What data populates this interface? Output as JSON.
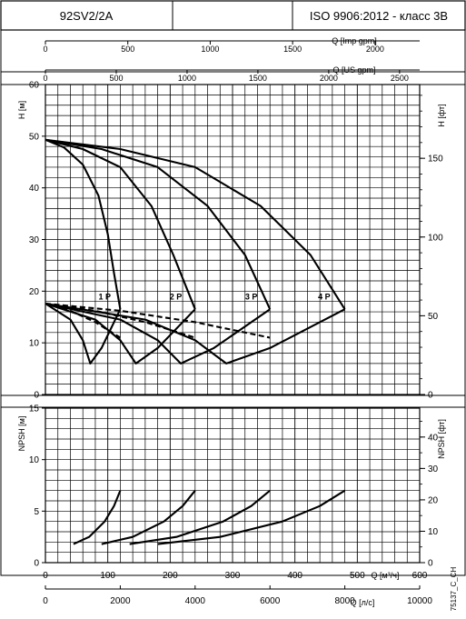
{
  "header": {
    "model": "92SV2/2A",
    "middle": "",
    "standard": "ISO 9906:2012 - класс 3B"
  },
  "code": "75137_C_CH",
  "chart_data": [
    {
      "type": "line",
      "panel": "head",
      "ylabel_left": "H [м]",
      "ylabel_right": "H [фт]",
      "ylim": [
        0,
        60
      ],
      "yticks": [
        0,
        10,
        20,
        30,
        40,
        50,
        60
      ],
      "ylim_ft": [
        0,
        196.85
      ],
      "yticks_ft": [
        0,
        50,
        100,
        150
      ],
      "xlim": [
        0,
        600
      ],
      "xticks": [
        0,
        100,
        200,
        300,
        400,
        500,
        600
      ],
      "top_axis_imp": {
        "label": "Q [Imp gpm]",
        "ticks": [
          0,
          500,
          1000,
          1500,
          2000
        ]
      },
      "top_axis_us": {
        "label": "Q [US gpm]",
        "ticks": [
          0,
          500,
          1000,
          1500,
          2000,
          2500
        ]
      },
      "grid": true,
      "series": [
        {
          "name": "1 P",
          "label_at": [
            95,
            19
          ],
          "style": "solid",
          "points": [
            [
              0,
              49.3
            ],
            [
              30,
              47.8
            ],
            [
              60,
              44.5
            ],
            [
              85,
              38.5
            ],
            [
              100,
              31
            ],
            [
              110,
              23.5
            ],
            [
              120,
              16.5
            ]
          ]
        },
        {
          "name": "2 P",
          "label_at": [
            209,
            19
          ],
          "style": "solid",
          "points": [
            [
              0,
              49.3
            ],
            [
              60,
              47.5
            ],
            [
              120,
              44
            ],
            [
              170,
              36.5
            ],
            [
              205,
              27
            ],
            [
              240,
              16.5
            ]
          ]
        },
        {
          "name": "3 P",
          "label_at": [
            330,
            19
          ],
          "style": "solid",
          "points": [
            [
              0,
              49.3
            ],
            [
              90,
              47.5
            ],
            [
              180,
              44
            ],
            [
              260,
              36.5
            ],
            [
              320,
              27
            ],
            [
              360,
              16.5
            ]
          ]
        },
        {
          "name": "4 P",
          "label_at": [
            447,
            19
          ],
          "style": "solid",
          "points": [
            [
              0,
              49.3
            ],
            [
              120,
              47.5
            ],
            [
              240,
              44
            ],
            [
              345,
              36.5
            ],
            [
              425,
              27
            ],
            [
              480,
              16.5
            ]
          ]
        },
        {
          "name": "",
          "style": "solid",
          "points": [
            [
              0,
              17.6
            ],
            [
              40,
              14.5
            ],
            [
              60,
              10.5
            ],
            [
              72,
              6
            ],
            [
              90,
              9
            ],
            [
              120,
              16.5
            ]
          ]
        },
        {
          "name": "",
          "style": "solid",
          "points": [
            [
              0,
              17.6
            ],
            [
              80,
              14.5
            ],
            [
              120,
              10.5
            ],
            [
              145,
              6
            ],
            [
              180,
              9
            ],
            [
              240,
              16.5
            ]
          ]
        },
        {
          "name": "",
          "style": "solid",
          "points": [
            [
              0,
              17.6
            ],
            [
              120,
              14.5
            ],
            [
              180,
              10.5
            ],
            [
              217,
              6
            ],
            [
              270,
              9
            ],
            [
              360,
              16.5
            ]
          ]
        },
        {
          "name": "",
          "style": "solid",
          "points": [
            [
              0,
              17.6
            ],
            [
              160,
              14.5
            ],
            [
              240,
              10.5
            ],
            [
              290,
              6
            ],
            [
              360,
              9
            ],
            [
              480,
              16.5
            ]
          ]
        },
        {
          "name": "",
          "style": "dashed",
          "points": [
            [
              0,
              17.6
            ],
            [
              40,
              16.2
            ],
            [
              80,
              14
            ],
            [
              120,
              11
            ]
          ]
        },
        {
          "name": "",
          "style": "dashed",
          "points": [
            [
              0,
              17.6
            ],
            [
              80,
              16.2
            ],
            [
              160,
              14
            ],
            [
              240,
              11
            ]
          ]
        },
        {
          "name": "",
          "style": "dashed",
          "points": [
            [
              0,
              17.6
            ],
            [
              120,
              16.2
            ],
            [
              240,
              14
            ],
            [
              360,
              11
            ]
          ]
        }
      ]
    },
    {
      "type": "line",
      "panel": "npsh",
      "ylabel_left": "NPSH [м]",
      "ylabel_right": "NPSH [фт]",
      "ylim": [
        0,
        15
      ],
      "yticks": [
        0,
        5,
        10,
        15
      ],
      "ylim_ft": [
        0,
        49.21
      ],
      "yticks_ft": [
        0,
        10,
        20,
        30,
        40
      ],
      "xlim": [
        0,
        600
      ],
      "xticks": [
        0,
        100,
        200,
        300,
        400,
        500,
        600
      ],
      "xlabel": "Q [м³/ч]",
      "bottom_axis_ls": {
        "label": "Q [л/с]",
        "ticks": [
          0,
          2000,
          4000,
          6000,
          8000,
          10000
        ]
      },
      "grid": true,
      "series": [
        {
          "name": "",
          "style": "solid",
          "points": [
            [
              45,
              1.8
            ],
            [
              70,
              2.5
            ],
            [
              95,
              4
            ],
            [
              110,
              5.5
            ],
            [
              120,
              7
            ]
          ]
        },
        {
          "name": "",
          "style": "solid",
          "points": [
            [
              90,
              1.8
            ],
            [
              140,
              2.5
            ],
            [
              190,
              4
            ],
            [
              220,
              5.5
            ],
            [
              240,
              7
            ]
          ]
        },
        {
          "name": "",
          "style": "solid",
          "points": [
            [
              135,
              1.8
            ],
            [
              210,
              2.5
            ],
            [
              285,
              4
            ],
            [
              330,
              5.5
            ],
            [
              360,
              7
            ]
          ]
        },
        {
          "name": "",
          "style": "solid",
          "points": [
            [
              180,
              1.8
            ],
            [
              280,
              2.5
            ],
            [
              380,
              4
            ],
            [
              440,
              5.5
            ],
            [
              480,
              7
            ]
          ]
        }
      ]
    }
  ]
}
